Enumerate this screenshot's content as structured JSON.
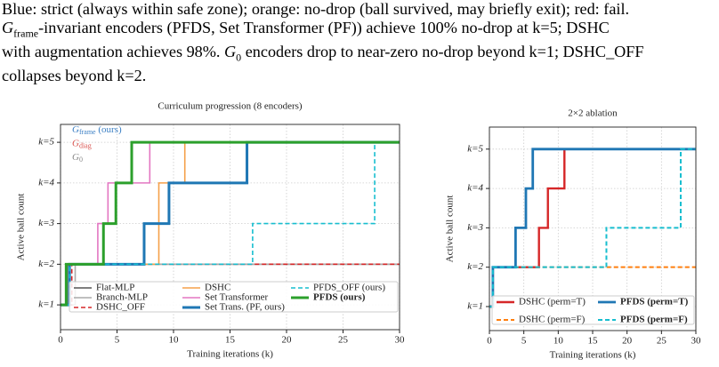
{
  "caption": [
    [
      "Blue: strict (always within safe zone); orange: no-drop (ball survived, may briefly exit); red: fail."
    ],
    [
      {
        "g": "G",
        "sub": "frame"
      },
      "-invariant encoders (PFDS, Set Transformer (PF)) achieve 100% no-drop at k=5; DSHC"
    ],
    [
      "with augmentation achieves 98%. ",
      {
        "g": "G",
        "sub": "0"
      },
      " encoders drop to near-zero no-drop beyond k=1; DSHC_OFF"
    ],
    [
      "collapses beyond k=2."
    ]
  ],
  "chart_data": [
    {
      "type": "step",
      "title": "Curriculum progression (8 encoders)",
      "xlabel": "Training iterations (k)",
      "ylabel": "Active ball count",
      "xlim": [
        0,
        30
      ],
      "ylim": [
        0.39,
        5.44
      ],
      "xticks": [
        0,
        5,
        10,
        15,
        20,
        25,
        30
      ],
      "yticks": [
        {
          "value": 1,
          "label": "k=1"
        },
        {
          "value": 2,
          "label": "k=2"
        },
        {
          "value": 3,
          "label": "k=3"
        },
        {
          "value": 4,
          "label": "k=4"
        },
        {
          "value": 5,
          "label": "k=5"
        }
      ],
      "grid": true,
      "legend": "lower center",
      "legend_rows": 3,
      "annotations": [
        {
          "g": "G",
          "sub": "frame",
          "rest": " (ours)",
          "color": "#3b7fc4"
        },
        {
          "g": "G",
          "sub": "diag",
          "rest": "",
          "color": "#d9534f"
        },
        {
          "g": "G",
          "sub": "0",
          "rest": "",
          "color": "#888888"
        }
      ],
      "series": [
        {
          "name": "Flat-MLP",
          "color": "#555555",
          "width": 1.6,
          "dash": false,
          "bold": false,
          "x": [
            0,
            0.6,
            30
          ],
          "values": [
            1,
            2,
            2
          ]
        },
        {
          "name": "Branch-MLP",
          "color": "#aaaaaa",
          "width": 1.6,
          "dash": false,
          "bold": false,
          "x": [
            0,
            1.3,
            30
          ],
          "values": [
            1,
            2,
            2
          ]
        },
        {
          "name": "DSHC_OFF",
          "color": "#d62728",
          "width": 1.6,
          "dash": true,
          "bold": false,
          "x": [
            0,
            1,
            30
          ],
          "values": [
            1,
            2,
            2
          ]
        },
        {
          "name": "DSHC",
          "color": "#f5a04a",
          "width": 1.6,
          "dash": false,
          "bold": false,
          "x": [
            0,
            0.8,
            8.7,
            11,
            30
          ],
          "values": [
            1,
            2,
            4,
            5,
            5
          ]
        },
        {
          "name": "Set Transformer",
          "color": "#e377c2",
          "width": 1.6,
          "dash": false,
          "bold": false,
          "x": [
            0,
            0.8,
            3.3,
            4.2,
            7.9,
            30
          ],
          "values": [
            1,
            2,
            3,
            4,
            5,
            5
          ]
        },
        {
          "name": "Set Trans. (PF, ours)",
          "color": "#1f77b4",
          "width": 3,
          "dash": false,
          "bold": false,
          "x": [
            0,
            0.8,
            7.4,
            9.6,
            16.5,
            30
          ],
          "values": [
            1,
            2,
            3,
            4,
            5,
            5
          ]
        },
        {
          "name": "PFDS_OFF (ours)",
          "color": "#17becf",
          "width": 1.6,
          "dash": true,
          "bold": false,
          "x": [
            0,
            0.8,
            17,
            27.8,
            30
          ],
          "values": [
            1,
            2,
            3,
            5,
            5
          ]
        },
        {
          "name": "PFDS (ours)",
          "color": "#2ca02c",
          "width": 3,
          "dash": false,
          "bold": true,
          "x": [
            0,
            0.5,
            3.8,
            4.9,
            6.3,
            30
          ],
          "values": [
            1,
            2,
            3,
            4,
            5,
            5
          ]
        }
      ]
    },
    {
      "type": "step",
      "title": "2×2 ablation",
      "xlabel": "Training iterations (k)",
      "ylabel": "Active ball count",
      "xlim": [
        0,
        30
      ],
      "ylim": [
        0.39,
        5.56
      ],
      "xticks": [
        0,
        5,
        10,
        15,
        20,
        25,
        30
      ],
      "yticks": [
        {
          "value": 1,
          "label": "k=1"
        },
        {
          "value": 2,
          "label": "k=2"
        },
        {
          "value": 3,
          "label": "k=3"
        },
        {
          "value": 4,
          "label": "k=4"
        },
        {
          "value": 5,
          "label": "k=5"
        }
      ],
      "grid": true,
      "legend": "lower center",
      "legend_rows": 2,
      "series": [
        {
          "name": "DSHC (perm=T)",
          "color": "#d62728",
          "width": 2.4,
          "dash": false,
          "bold": false,
          "x": [
            0,
            0.5,
            7.2,
            8.5,
            10.9,
            30
          ],
          "values": [
            1,
            2,
            3,
            4,
            5,
            5
          ]
        },
        {
          "name": "DSHC (perm=F)",
          "color": "#ff7f0e",
          "width": 2,
          "dash": true,
          "bold": false,
          "x": [
            0,
            0.5,
            30
          ],
          "values": [
            1,
            2,
            2
          ]
        },
        {
          "name": "PFDS (perm=T)",
          "color": "#1f77b4",
          "width": 2.8,
          "dash": false,
          "bold": true,
          "x": [
            0,
            0.5,
            3.8,
            5.3,
            6.3,
            30
          ],
          "values": [
            1,
            2,
            3,
            4,
            5,
            5
          ]
        },
        {
          "name": "PFDS (perm=F)",
          "color": "#17becf",
          "width": 2,
          "dash": true,
          "bold": true,
          "x": [
            0,
            0.5,
            17,
            27.8,
            30
          ],
          "values": [
            1,
            2,
            3,
            5,
            5
          ]
        }
      ]
    }
  ]
}
